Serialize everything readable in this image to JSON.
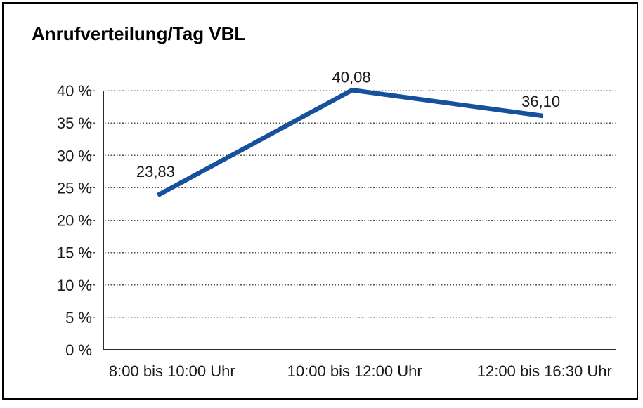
{
  "title": "Anrufverteilung/Tag VBL",
  "chart_data": {
    "type": "line",
    "title": "Anrufverteilung/Tag VBL",
    "categories": [
      "8:00 bis 10:00 Uhr",
      "10:00 bis 12:00 Uhr",
      "12:00 bis 16:30 Uhr"
    ],
    "series": [
      {
        "name": "Anrufverteilung/Tag VBL",
        "values": [
          23.83,
          40.08,
          36.1
        ],
        "value_labels": [
          "23,83",
          "40,08",
          "36,10"
        ]
      }
    ],
    "xlabel": "",
    "ylabel": "",
    "ylim": [
      0,
      40
    ],
    "ytick_step": 5,
    "ytick_labels": [
      "0 %",
      "5 %",
      "10 %",
      "15 %",
      "20 %",
      "25 %",
      "30 %",
      "35 %",
      "40 %"
    ],
    "grid": "horizontal-dotted",
    "legend": "none",
    "colors": {
      "line": "#17519E",
      "axis": "#2b2b2b",
      "gridline": "#4d4d4d",
      "text": "#1a1a1a",
      "background": "#ffffff",
      "border": "#000000"
    }
  }
}
